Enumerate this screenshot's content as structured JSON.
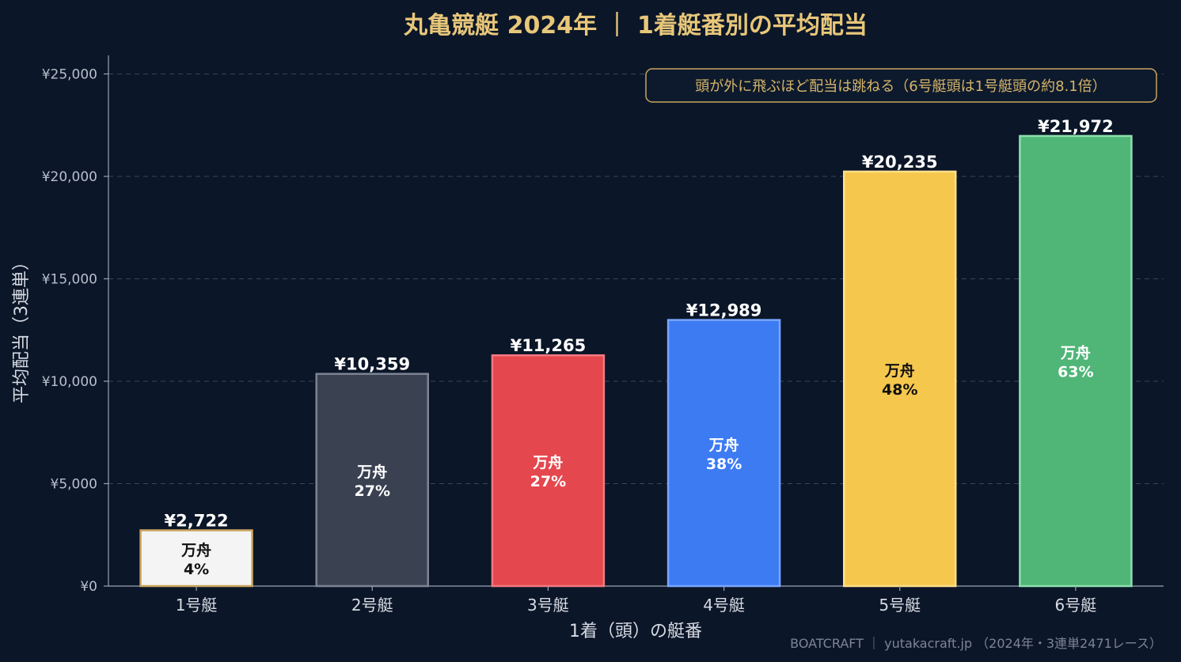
{
  "chart_data": {
    "type": "bar",
    "title": "丸亀競艇 2024年 ｜ 1着艇番別の平均配当",
    "xlabel": "1着（頭）の艇番",
    "ylabel": "平均配当（3連単）",
    "ylim": [
      0,
      26000
    ],
    "yticks": [
      0,
      5000,
      10000,
      15000,
      20000,
      25000
    ],
    "ytick_labels": [
      "¥0",
      "¥5,000",
      "¥10,000",
      "¥15,000",
      "¥20,000",
      "¥25,000"
    ],
    "grid": true,
    "categories": [
      "1号艇",
      "2号艇",
      "3号艇",
      "4号艇",
      "5号艇",
      "6号艇"
    ],
    "values": [
      2722,
      10359,
      11265,
      12989,
      20235,
      21972
    ],
    "value_labels": [
      "¥2,722",
      "¥10,359",
      "¥11,265",
      "¥12,989",
      "¥20,235",
      "¥21,972"
    ],
    "manshu_label": "万舟",
    "manshu_rates": [
      "4%",
      "27%",
      "27%",
      "38%",
      "48%",
      "63%"
    ],
    "bar_colors": [
      "#f4f4f4",
      "#3a4252",
      "#e5474e",
      "#3d7bf3",
      "#f5c84d",
      "#4fb677"
    ],
    "bar_edge_colors": [
      "#c9a55e",
      "#7d8594",
      "#f07a80",
      "#7aa6ff",
      "#ffe08a",
      "#8ee0ad"
    ],
    "inner_text_colors": [
      "#111111",
      "#ffffff",
      "#ffffff",
      "#ffffff",
      "#111111",
      "#ffffff"
    ],
    "annotation": "頭が外に飛ぶほど配当は跳ねる（6号艇頭は1号艇頭の約8.1倍）",
    "source": "BOATCRAFT ｜ yutakacraft.jp （2024年・3連単2471レース）"
  }
}
